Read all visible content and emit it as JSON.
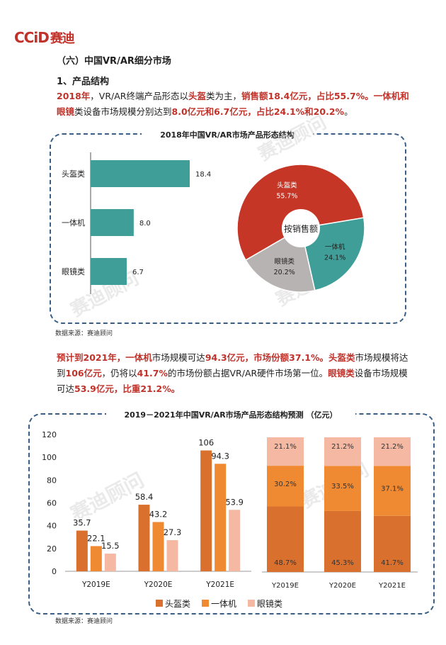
{
  "logo": {
    "prefix": "CCiD",
    "cn": "赛迪"
  },
  "section_title": "（六）中国VR/AR细分市场",
  "sub_title": "1、产品结构",
  "para1": {
    "p1": "2018年",
    "p2": "，VR/AR终端产品形态以",
    "p3": "头盔",
    "p4": "类为主，",
    "p5": "销售额18.4亿元，占比55.7%。一体机和眼镜",
    "p6": "类设备市场规模分别达到",
    "p7": "8.0亿元和6.7亿元，占比24.1%和20.2%",
    "p8": "。"
  },
  "chart1_title": "2018年中国VR/AR市场产品形态结构",
  "source1": "数据来源：赛迪顾问",
  "para2": {
    "p1": "预计到2021年，一体机",
    "p2": "市场规模可达",
    "p3": "94.3亿元，市场份额37.1%。头盔类",
    "p4": "市场规模将达到",
    "p5": "106亿元",
    "p6": "，仍将以",
    "p7": "41.7%",
    "p8": "的市场份额占据VR/AR硬件市场第一位。",
    "p9": "眼镜类",
    "p10": "设备市场规模可达",
    "p11": "53.9亿元，比重21.2%。"
  },
  "chart2_title": "2019－2021年中国VR/AR市场产品形态结构预测 （亿元）",
  "source2": "数据来源：赛迪顾问",
  "watermark": "赛迪顾问",
  "watermark_sub": "赛 迪 创 造 世 界",
  "colors": {
    "teal": "#3f9e98",
    "red": "#c53627",
    "grey": "#b8b3b3",
    "o1": "#d9702e",
    "o2": "#f08a32",
    "o3": "#f5b9a3",
    "accent": "#c0322a"
  },
  "chart_data": [
    {
      "type": "bar",
      "orientation": "horizontal",
      "categories": [
        "头盔类",
        "一体机",
        "眼镜类"
      ],
      "values": [
        18.4,
        8.0,
        6.7
      ],
      "title": "2018年中国VR/AR市场产品形态结构"
    },
    {
      "type": "pie",
      "center_label": "按销售额",
      "labels": [
        "头盔类",
        "一体机",
        "眼镜类"
      ],
      "values": [
        55.7,
        24.1,
        20.2
      ],
      "value_labels": [
        "55.7%",
        "24.1%",
        "20.2%"
      ]
    },
    {
      "type": "bar",
      "categories": [
        "Y2019E",
        "Y2020E",
        "Y2021E"
      ],
      "series": [
        {
          "name": "头盔类",
          "values": [
            35.7,
            58.4,
            106
          ]
        },
        {
          "name": "一体机",
          "values": [
            22.1,
            43.2,
            94.3
          ]
        },
        {
          "name": "眼镜类",
          "values": [
            15.5,
            27.3,
            53.9
          ]
        }
      ],
      "ylim": [
        0,
        120
      ],
      "yticks": [
        "0",
        "20",
        "40",
        "60",
        "80",
        "100",
        "120"
      ]
    },
    {
      "type": "bar",
      "stacked": "percent",
      "categories": [
        "Y2019E",
        "Y2020E",
        "Y2021E"
      ],
      "series": [
        {
          "name": "头盔类",
          "values": [
            48.7,
            45.3,
            41.7
          ],
          "labels": [
            "48.7%",
            "45.3%",
            "41.7%"
          ]
        },
        {
          "name": "一体机",
          "values": [
            30.2,
            33.5,
            37.1
          ],
          "labels": [
            "30.2%",
            "33.5%",
            "37.1%"
          ]
        },
        {
          "name": "眼镜类",
          "values": [
            21.1,
            21.2,
            21.2
          ],
          "labels": [
            "21.1%",
            "21.2%",
            "21.2%"
          ]
        }
      ]
    }
  ]
}
